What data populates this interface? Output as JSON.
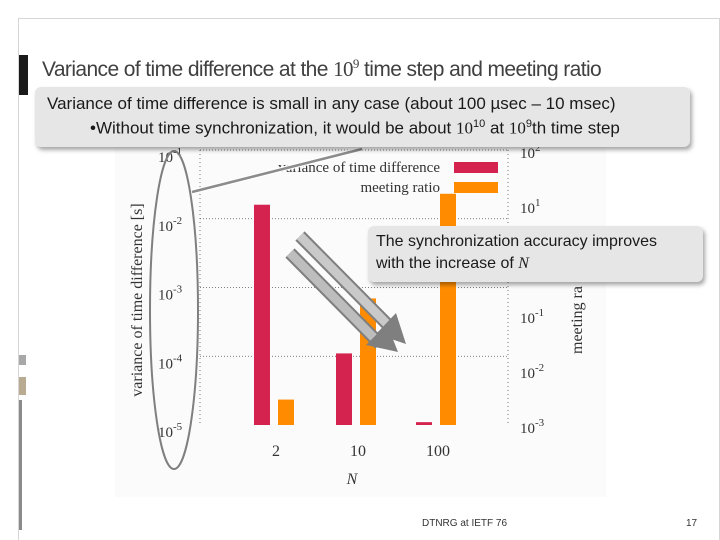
{
  "slide": {
    "title_prefix": "Variance of time difference  at the ",
    "title_number": "10",
    "title_exponent": "9",
    "title_suffix": " time step and meeting ratio",
    "footer": "DTNRG at IETF 76",
    "page_number": "17"
  },
  "callouts": {
    "top_line1": "Variance of time difference is small in any case (about 100 µsec – 10 msec)",
    "top_line2_prefix": "•Without time synchronization, it would be about ",
    "top_line2_base": "10",
    "top_line2_exp": "10",
    "top_line2_mid": " at ",
    "top_line2_step_base": "10",
    "top_line2_step_exp": "9",
    "top_line2_suffix": "th time step",
    "mid_line1": "The synchronization accuracy improves",
    "mid_line2_prefix": "with the increase of ",
    "mid_line2_var": "N"
  },
  "chart_data": {
    "type": "bar",
    "xlabel": "N",
    "ylabel_left": "variance of time difference [s]",
    "ylabel_right": "meeting ra",
    "categories": [
      "2",
      "10",
      "100"
    ],
    "left_axis": {
      "scale": "log",
      "ylim": [
        1e-05,
        0.1
      ],
      "ticks": [
        {
          "base": "10",
          "exp": "-1"
        },
        {
          "base": "10",
          "exp": "-2"
        },
        {
          "base": "10",
          "exp": "-3"
        },
        {
          "base": "10",
          "exp": "-4"
        },
        {
          "base": "10",
          "exp": "-5"
        }
      ]
    },
    "right_axis": {
      "scale": "log",
      "ylim": [
        0.001,
        100
      ],
      "ticks": [
        {
          "base": "10",
          "exp": "2"
        },
        {
          "base": "10",
          "exp": "1"
        },
        {
          "base": "10",
          "exp": "-1"
        },
        {
          "base": "10",
          "exp": "-2"
        },
        {
          "base": "10",
          "exp": "-3"
        }
      ]
    },
    "series": [
      {
        "name": "variance of time difference",
        "axis": "left",
        "color": "#d4234e",
        "values": [
          0.016,
          0.00011,
          1.1e-05
        ]
      },
      {
        "name": "meeting ratio",
        "axis": "right",
        "color": "#ff8c00",
        "values": [
          0.0029,
          0.2,
          16
        ]
      }
    ],
    "grid": true,
    "legend": "top"
  }
}
